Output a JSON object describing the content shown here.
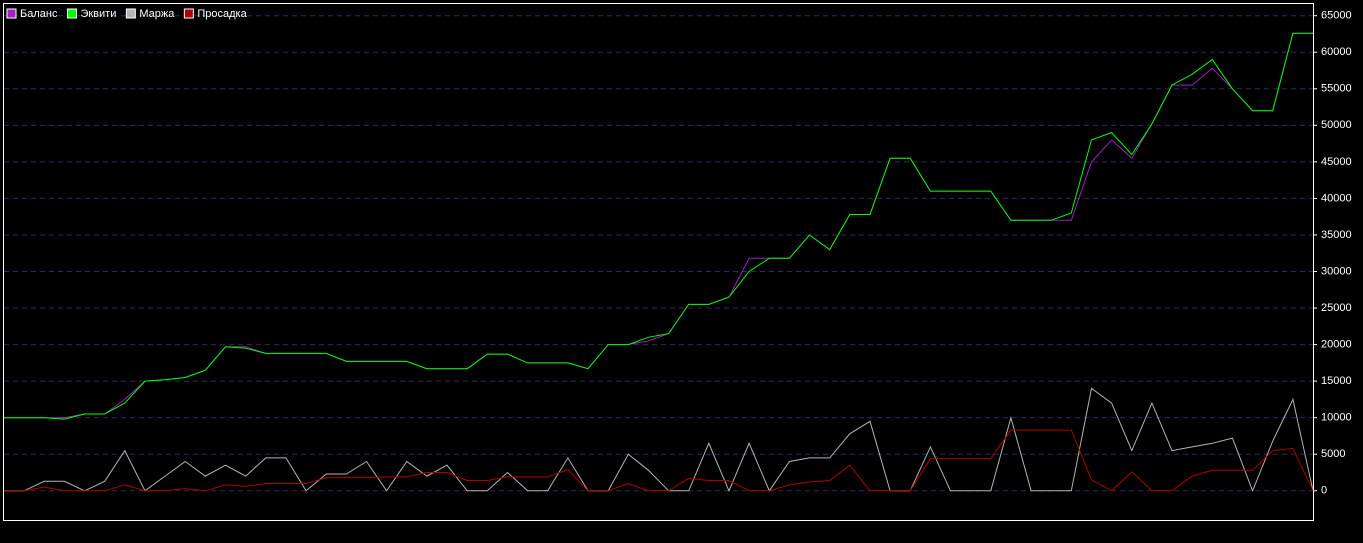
{
  "chart_data": {
    "type": "line",
    "categories": [
      null,
      null,
      null,
      null,
      null,
      null,
      null,
      null,
      null,
      null,
      null,
      null,
      null,
      null,
      null,
      null,
      null,
      null,
      null,
      null,
      null,
      null,
      null,
      null,
      null,
      null,
      null,
      null,
      null,
      null,
      null,
      null,
      null,
      null,
      null,
      null,
      null,
      null,
      null,
      null,
      null,
      null,
      null,
      null,
      null,
      null,
      null,
      null,
      null,
      null,
      null,
      null,
      null,
      null,
      null,
      null,
      null,
      null,
      null,
      null,
      null,
      null,
      null,
      null,
      null,
      null
    ],
    "series": [
      {
        "name": "Баланс",
        "color": "#a020c0",
        "values": [
          10000,
          10000,
          10000,
          10000,
          10500,
          10500,
          12500,
          15000,
          15200,
          15500,
          16500,
          19700,
          19700,
          18800,
          18800,
          18800,
          18800,
          17700,
          17700,
          17700,
          17700,
          16700,
          16700,
          16700,
          18700,
          18700,
          17500,
          17500,
          17500,
          16700,
          20000,
          20000,
          20500,
          21500,
          25500,
          25500,
          26500,
          31800,
          31800,
          31800,
          35000,
          33000,
          37800,
          37800,
          45500,
          45500,
          41000,
          41000,
          41000,
          41000,
          37000,
          37000,
          37000,
          37000,
          45000,
          48000,
          45500,
          50200,
          55500,
          55500,
          57800,
          55000,
          52000,
          52000,
          62600,
          62600
        ]
      },
      {
        "name": "Эквити",
        "color": "#00ff00",
        "values": [
          10000,
          10000,
          10000,
          9800,
          10500,
          10500,
          12000,
          15000,
          15200,
          15500,
          16500,
          19700,
          19500,
          18800,
          18800,
          18800,
          18800,
          17700,
          17700,
          17700,
          17700,
          16700,
          16700,
          16700,
          18700,
          18700,
          17500,
          17500,
          17500,
          16700,
          20000,
          20000,
          21000,
          21500,
          25500,
          25500,
          26500,
          30000,
          31800,
          31800,
          35000,
          33000,
          37800,
          37800,
          45500,
          45500,
          41000,
          41000,
          41000,
          41000,
          37000,
          37000,
          37000,
          38000,
          48000,
          49000,
          46000,
          50200,
          55500,
          57000,
          59000,
          55000,
          52000,
          52000,
          62600,
          62600
        ]
      },
      {
        "name": "Маржа",
        "color": "#b4b4b4",
        "values": [
          0,
          0,
          1300,
          1300,
          0,
          1300,
          5500,
          0,
          2000,
          4000,
          2000,
          3500,
          2000,
          4500,
          4500,
          0,
          2300,
          2300,
          4000,
          0,
          4000,
          2000,
          3500,
          0,
          0,
          2500,
          0,
          0,
          4500,
          0,
          0,
          5000,
          2800,
          0,
          0,
          6500,
          0,
          6500,
          0,
          4000,
          4500,
          4500,
          7800,
          9500,
          0,
          0,
          6000,
          0,
          0,
          0,
          10000,
          0,
          0,
          0,
          14000,
          12000,
          5500,
          12000,
          5500,
          6000,
          6500,
          7200,
          0,
          6800,
          12500,
          0
        ]
      },
      {
        "name": "Просадка",
        "color": "#b00000",
        "values": [
          0,
          0,
          500,
          0,
          0,
          0,
          800,
          0,
          0,
          300,
          0,
          800,
          600,
          1000,
          1000,
          1000,
          1800,
          1800,
          1800,
          1900,
          1900,
          2500,
          2500,
          1400,
          1400,
          1900,
          1900,
          1900,
          2900,
          0,
          0,
          1000,
          0,
          0,
          1700,
          1400,
          1400,
          0,
          0,
          800,
          1200,
          1400,
          3500,
          0,
          0,
          0,
          4400,
          4400,
          4400,
          4400,
          8300,
          8300,
          8300,
          8300,
          1500,
          0,
          2600,
          0,
          0,
          2000,
          2800,
          2800,
          2800,
          5500,
          5800,
          0
        ]
      }
    ],
    "ylim": [
      -4000,
      66600
    ],
    "yticks": [
      0,
      5000,
      10000,
      15000,
      20000,
      25000,
      30000,
      35000,
      40000,
      45000,
      50000,
      55000,
      60000,
      65000
    ],
    "grid": true
  }
}
